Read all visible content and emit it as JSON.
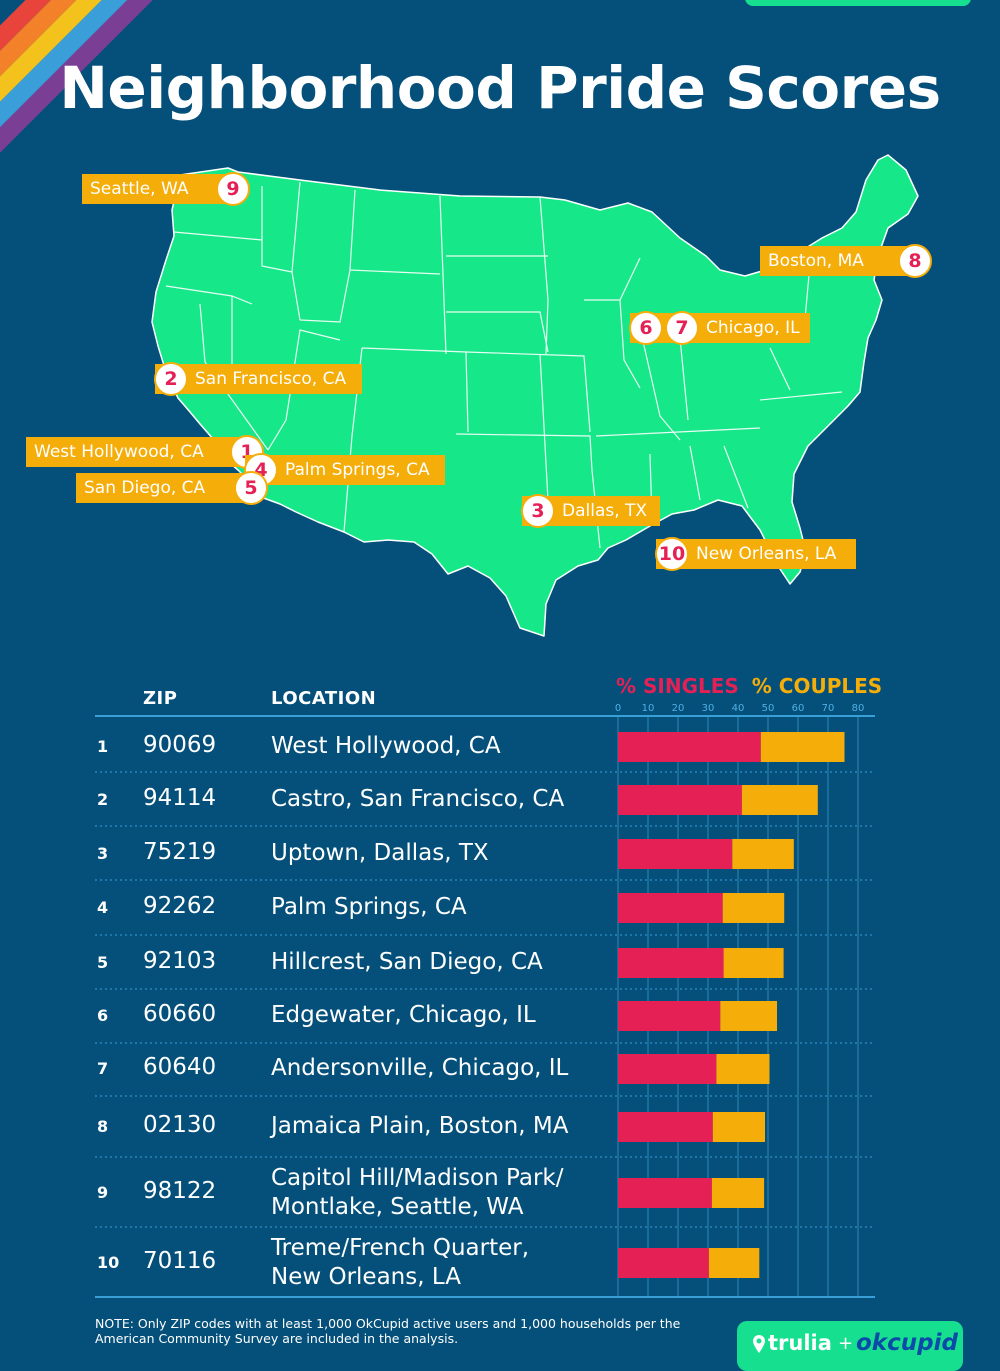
{
  "title": "Neighborhood Pride Scores",
  "colors": {
    "background": "#05507a",
    "map_fill": "#16e88a",
    "label_bg": "#f5ad0a",
    "singles": "#e52055",
    "couples": "#f5ad0a",
    "rainbow": [
      "#e8443c",
      "#f2812a",
      "#f4c21d",
      "#3a9fd9",
      "#7a3f95"
    ]
  },
  "map_labels": [
    {
      "name": "Seattle, WA",
      "ranks": [
        "9"
      ]
    },
    {
      "name": "Boston, MA",
      "ranks": [
        "8"
      ]
    },
    {
      "name": "Chicago, IL",
      "ranks": [
        "6",
        "7"
      ]
    },
    {
      "name": "San Francisco, CA",
      "ranks": [
        "2"
      ]
    },
    {
      "name": "West Hollywood, CA",
      "ranks": [
        "1"
      ]
    },
    {
      "name": "Palm Springs, CA",
      "ranks": [
        "4"
      ]
    },
    {
      "name": "San Diego, CA",
      "ranks": [
        "5"
      ]
    },
    {
      "name": "Dallas, TX",
      "ranks": [
        "3"
      ]
    },
    {
      "name": "New Orleans, LA",
      "ranks": [
        "10"
      ]
    }
  ],
  "table": {
    "headers": {
      "zip": "ZIP",
      "location": "LOCATION"
    },
    "legend": {
      "singles": "% SINGLES",
      "couples": "% COUPLES"
    }
  },
  "chart_data": {
    "type": "bar",
    "stacked": true,
    "orientation": "horizontal",
    "x_ticks": [
      0,
      10,
      20,
      30,
      40,
      50,
      60,
      70,
      80
    ],
    "xlim": [
      0,
      80
    ],
    "grid": true,
    "categories": [
      "West Hollywood, CA",
      "Castro, San Francisco, CA",
      "Uptown, Dallas, TX",
      "Palm Springs, CA",
      "Hillcrest, San Diego, CA",
      "Edgewater, Chicago, IL",
      "Andersonville, Chicago, IL",
      "Jamaica Plain, Boston, MA",
      "Capitol Hill/Madison Park/ Montlake, Seattle, WA",
      "Treme/French Quarter, New Orleans, LA"
    ],
    "series": [
      {
        "name": "% SINGLES",
        "values": [
          47.6,
          41.3,
          38.1,
          34.9,
          35.2,
          34.1,
          32.8,
          31.6,
          31.3,
          30.3
        ]
      },
      {
        "name": "% COUPLES",
        "values": [
          27.9,
          25.3,
          20.5,
          20.5,
          20.0,
          18.9,
          17.7,
          17.4,
          17.4,
          16.8
        ]
      }
    ]
  },
  "rows": [
    {
      "rank": "1",
      "zip": "90069",
      "location": [
        "West Hollywood, CA"
      ]
    },
    {
      "rank": "2",
      "zip": "94114",
      "location": [
        "Castro, San Francisco, CA"
      ]
    },
    {
      "rank": "3",
      "zip": "75219",
      "location": [
        "Uptown, Dallas, TX"
      ]
    },
    {
      "rank": "4",
      "zip": "92262",
      "location": [
        "Palm Springs, CA"
      ]
    },
    {
      "rank": "5",
      "zip": "92103",
      "location": [
        "Hillcrest, San Diego, CA"
      ]
    },
    {
      "rank": "6",
      "zip": "60660",
      "location": [
        "Edgewater, Chicago, IL"
      ]
    },
    {
      "rank": "7",
      "zip": "60640",
      "location": [
        "Andersonville, Chicago, IL"
      ]
    },
    {
      "rank": "8",
      "zip": "02130",
      "location": [
        "Jamaica Plain, Boston, MA"
      ]
    },
    {
      "rank": "9",
      "zip": "98122",
      "location": [
        "Capitol Hill/Madison Park/",
        "Montlake, Seattle, WA"
      ]
    },
    {
      "rank": "10",
      "zip": "70116",
      "location": [
        "Treme/French Quarter,",
        "New Orleans, LA"
      ]
    }
  ],
  "footnote": "NOTE: Only ZIP codes with at least 1,000 OkCupid active users and 1,000 households per the American Community Survey are included in the analysis.",
  "logos": {
    "trulia": "trulia",
    "plus": "+",
    "okcupid": "okcupid"
  }
}
